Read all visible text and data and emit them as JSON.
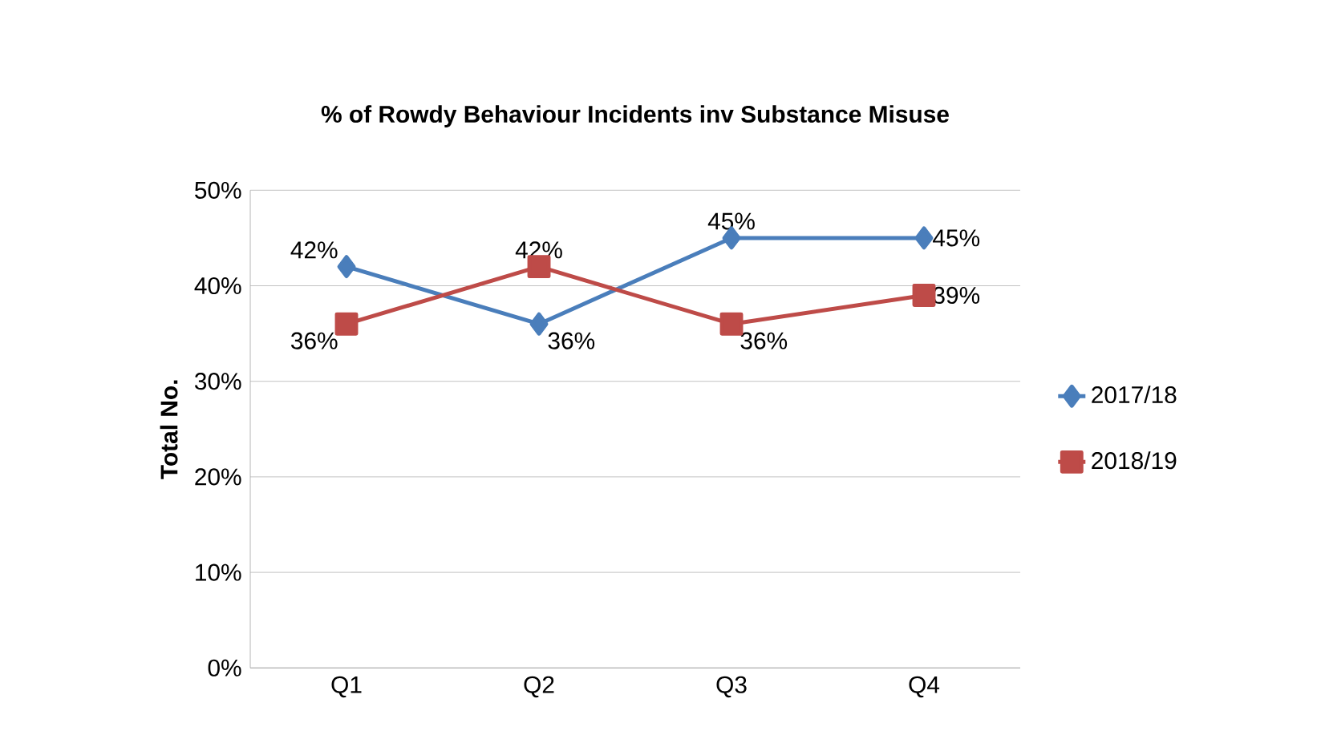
{
  "chart_data": {
    "type": "line",
    "title": "% of Rowdy Behaviour Incidents inv Substance Misuse",
    "ylabel": "Total No.",
    "categories": [
      "Q1",
      "Q2",
      "Q3",
      "Q4"
    ],
    "series": [
      {
        "name": "2017/18",
        "color": "#4a7ebb",
        "marker": "diamond",
        "values": [
          42,
          36,
          45,
          45
        ],
        "value_labels": [
          "42%",
          "36%",
          "45%",
          "45%"
        ]
      },
      {
        "name": "2018/19",
        "color": "#be4b48",
        "marker": "square",
        "values": [
          36,
          42,
          36,
          39
        ],
        "value_labels": [
          "36%",
          "42%",
          "36%",
          "39%"
        ]
      }
    ],
    "ylim": [
      0,
      50
    ],
    "yticks": [
      {
        "value": 0,
        "label": "0%"
      },
      {
        "value": 10,
        "label": "10%"
      },
      {
        "value": 20,
        "label": "20%"
      },
      {
        "value": 30,
        "label": "30%"
      },
      {
        "value": 40,
        "label": "40%"
      },
      {
        "value": 50,
        "label": "50%"
      }
    ],
    "grid": "y",
    "legend": "right",
    "line_style": "solid"
  }
}
